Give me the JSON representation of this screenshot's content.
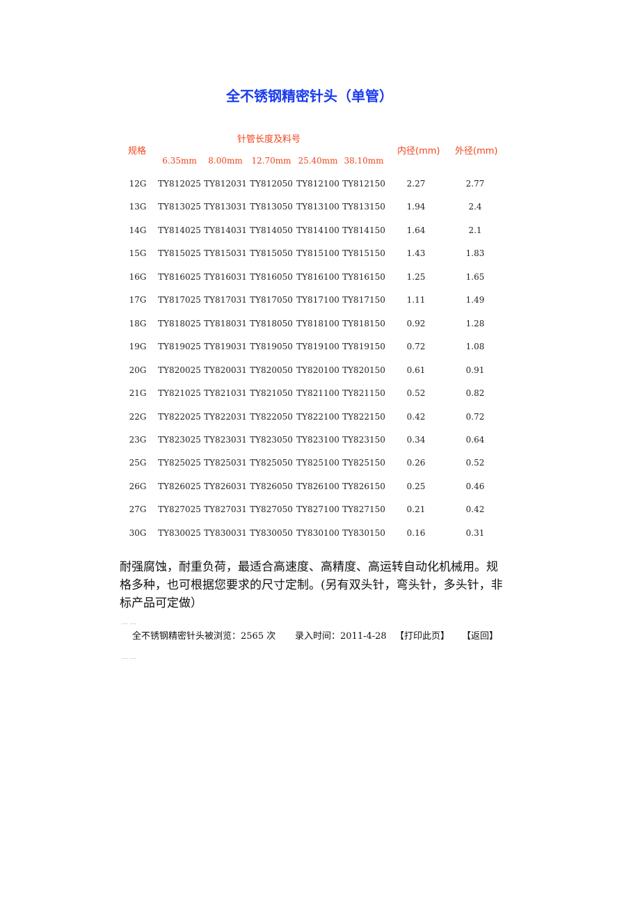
{
  "title": "全不锈钢精密针头（单管）",
  "table": {
    "gauge_header": "规格",
    "length_group_header": "针管长度及料号",
    "lengths": [
      "6.35mm",
      "8.00mm",
      "12.70mm",
      "25.40mm",
      "38.10mm"
    ],
    "inner_header": "内径(mm)",
    "outer_header": "外径(mm)",
    "rows": [
      [
        "12G",
        "TY812025",
        "TY812031",
        "TY812050",
        "TY812100",
        "TY812150",
        "2.27",
        "2.77"
      ],
      [
        "13G",
        "TY813025",
        "TY813031",
        "TY813050",
        "TY813100",
        "TY813150",
        "1.94",
        "2.4"
      ],
      [
        "14G",
        "TY814025",
        "TY814031",
        "TY814050",
        "TY814100",
        "TY814150",
        "1.64",
        "2.1"
      ],
      [
        "15G",
        "TY815025",
        "TY815031",
        "TY815050",
        "TY815100",
        "TY815150",
        "1.43",
        "1.83"
      ],
      [
        "16G",
        "TY816025",
        "TY816031",
        "TY816050",
        "TY816100",
        "TY816150",
        "1.25",
        "1.65"
      ],
      [
        "17G",
        "TY817025",
        "TY817031",
        "TY817050",
        "TY817100",
        "TY817150",
        "1.11",
        "1.49"
      ],
      [
        "18G",
        "TY818025",
        "TY818031",
        "TY818050",
        "TY818100",
        "TY818150",
        "0.92",
        "1.28"
      ],
      [
        "19G",
        "TY819025",
        "TY819031",
        "TY819050",
        "TY819100",
        "TY819150",
        "0.72",
        "1.08"
      ],
      [
        "20G",
        "TY820025",
        "TY820031",
        "TY820050",
        "TY820100",
        "TY820150",
        "0.61",
        "0.91"
      ],
      [
        "21G",
        "TY821025",
        "TY821031",
        "TY821050",
        "TY821100",
        "TY821150",
        "0.52",
        "0.82"
      ],
      [
        "22G",
        "TY822025",
        "TY822031",
        "TY822050",
        "TY822100",
        "TY822150",
        "0.42",
        "0.72"
      ],
      [
        "23G",
        "TY823025",
        "TY823031",
        "TY823050",
        "TY823100",
        "TY823150",
        "0.34",
        "0.64"
      ],
      [
        "25G",
        "TY825025",
        "TY825031",
        "TY825050",
        "TY825100",
        "TY825150",
        "0.26",
        "0.52"
      ],
      [
        "26G",
        "TY826025",
        "TY826031",
        "TY826050",
        "TY826100",
        "TY826150",
        "0.25",
        "0.46"
      ],
      [
        "27G",
        "TY827025",
        "TY827031",
        "TY827050",
        "TY827100",
        "TY827150",
        "0.21",
        "0.42"
      ],
      [
        "30G",
        "TY830025",
        "TY830031",
        "TY830050",
        "TY830100",
        "TY830150",
        "0.16",
        "0.31"
      ]
    ]
  },
  "description": "耐强腐蚀，耐重负荷，最适合高速度、高精度、高运转自动化机械用。规格多种，也可根据您要求的尺寸定制。(另有双头针，弯头针，多头针，非标产品可定做）",
  "footer": {
    "views": "全不锈钢精密针头被浏览：2565 次",
    "date": "录入时间：2011-4-28",
    "print": "【打印此页】",
    "back": "【返回】"
  },
  "dash": "…  …"
}
